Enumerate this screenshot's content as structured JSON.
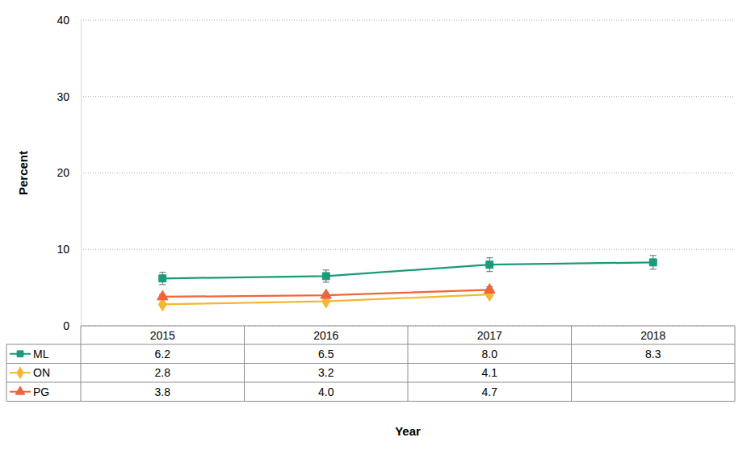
{
  "chart_data": {
    "type": "line",
    "x_label": "Year",
    "y_label": "Percent",
    "categories": [
      "2015",
      "2016",
      "2017",
      "2018"
    ],
    "series": [
      {
        "name": "ML",
        "color": "#1a9a7a",
        "marker": "square",
        "line_style": "solid",
        "values": [
          6.2,
          6.5,
          8.0,
          8.3
        ],
        "value_labels": [
          "6.2",
          "6.5",
          "8.0",
          "8.3"
        ],
        "errors": [
          0.8,
          0.8,
          0.9,
          0.9
        ]
      },
      {
        "name": "ON",
        "color": "#f5b731",
        "marker": "diamond",
        "line_style": "solid",
        "values": [
          2.8,
          3.2,
          4.1,
          null
        ],
        "value_labels": [
          "2.8",
          "3.2",
          "4.1",
          null
        ],
        "errors": [
          0.2,
          0.2,
          0.3,
          null
        ]
      },
      {
        "name": "PG",
        "color": "#f0643c",
        "marker": "triangle",
        "line_style": "solid",
        "values": [
          3.8,
          4.0,
          4.7,
          null
        ],
        "value_labels": [
          "3.8",
          "4.0",
          "4.7",
          null
        ],
        "errors": [
          0.3,
          0.3,
          0.4,
          null
        ]
      }
    ],
    "ylim": [
      0,
      40
    ],
    "yticks": [
      0,
      10,
      20,
      30,
      40
    ],
    "grid": true
  }
}
